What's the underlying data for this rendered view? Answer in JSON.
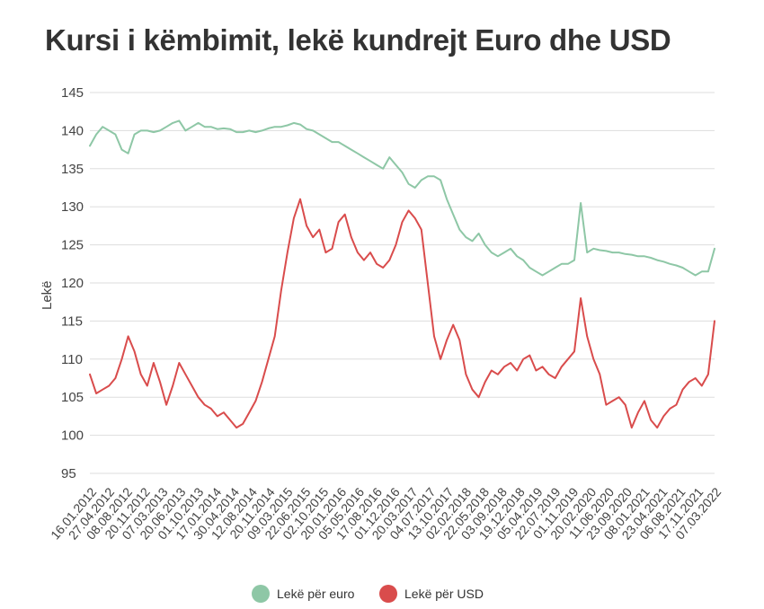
{
  "title": "Kursi i këmbimit, lekë kundrejt Euro dhe USD",
  "chart_data": {
    "type": "line",
    "title": "Kursi i këmbimit, lekë kundrejt Euro dhe USD",
    "ylabel": "Lekë",
    "xlabel": "",
    "ylim": [
      95,
      145
    ],
    "yticks": [
      95,
      100,
      105,
      110,
      115,
      120,
      125,
      130,
      135,
      140,
      145
    ],
    "grid": true,
    "legend_position": "bottom",
    "x_tick_labels": [
      "16.01.2012",
      "27.04.2012",
      "08.08.2012",
      "20.11.2012",
      "07.03.2013",
      "20.06.2013",
      "01.10.2013",
      "17.01.2014",
      "30.04.2014",
      "12.08.2014",
      "20.11.2014",
      "09.03.2015",
      "22.06.2015",
      "02.10.2015",
      "20.01.2016",
      "05.05.2016",
      "17.08.2016",
      "01.12.2016",
      "20.03.2017",
      "04.07.2017",
      "13.10.2017",
      "02.02.2018",
      "22.05.2018",
      "03.09.2018",
      "19.12.2018",
      "05.04.2019",
      "22.07.2019",
      "01.11.2019",
      "20.02.2020",
      "11.06.2020",
      "23.09.2020",
      "08.01.2021",
      "23.04.2021",
      "06.08.2021",
      "17.11.2021",
      "07.03.2022"
    ],
    "series": [
      {
        "name": "Lekë për euro",
        "color": "#8ec7a6",
        "values": [
          138,
          139.5,
          140.5,
          140,
          139.5,
          137.5,
          137,
          139.5,
          140,
          140,
          139.8,
          140,
          140.5,
          141,
          141.3,
          140,
          140.5,
          141,
          140.5,
          140.5,
          140.2,
          140.3,
          140.2,
          139.8,
          139.8,
          140,
          139.8,
          140,
          140.3,
          140.5,
          140.5,
          140.7,
          141,
          140.8,
          140.2,
          140,
          139.5,
          139,
          138.5,
          138.5,
          138,
          137.5,
          137,
          136.5,
          136,
          135.5,
          135,
          136.5,
          135.5,
          134.5,
          133,
          132.5,
          133.5,
          134,
          134,
          133.5,
          131,
          129,
          127,
          126,
          125.5,
          126.5,
          125,
          124,
          123.5,
          124,
          124.5,
          123.5,
          123,
          122,
          121.5,
          121,
          121.5,
          122,
          122.5,
          122.5,
          123,
          130.5,
          124,
          124.5,
          124.3,
          124.2,
          124,
          124,
          123.8,
          123.7,
          123.5,
          123.5,
          123.3,
          123,
          122.8,
          122.5,
          122.3,
          122,
          121.5,
          121,
          121.5,
          121.5,
          124.5
        ]
      },
      {
        "name": "Lekë për USD",
        "color": "#d94c4c",
        "values": [
          108,
          105.5,
          106,
          106.5,
          107.5,
          110,
          113,
          111,
          108,
          106.5,
          109.5,
          107,
          104,
          106.5,
          109.5,
          108,
          106.5,
          105,
          104,
          103.5,
          102.5,
          103,
          102,
          101,
          101.5,
          103,
          104.5,
          107,
          110,
          113,
          119,
          124,
          128.5,
          131,
          127.5,
          126,
          127,
          124,
          124.5,
          128,
          129,
          126,
          124,
          123,
          124,
          122.5,
          122,
          123,
          125,
          128,
          129.5,
          128.5,
          127,
          120,
          113,
          110,
          112.5,
          114.5,
          112.5,
          108,
          106,
          105,
          107,
          108.5,
          108,
          109,
          109.5,
          108.5,
          110,
          110.5,
          108.5,
          109,
          108,
          107.5,
          109,
          110,
          111,
          118,
          113,
          110,
          108,
          104,
          104.5,
          105,
          104,
          101,
          103,
          104.5,
          102,
          101,
          102.5,
          103.5,
          104,
          106,
          107,
          107.5,
          106.5,
          108,
          115
        ]
      }
    ]
  }
}
